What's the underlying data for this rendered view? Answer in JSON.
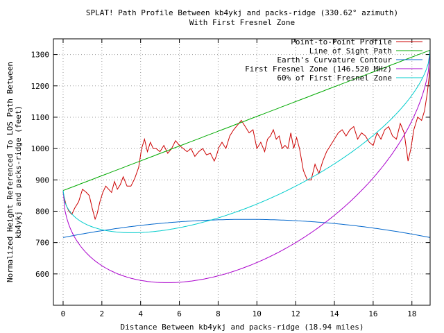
{
  "chart_data": {
    "type": "line",
    "title": "SPLAT! Path Profile Between kb4ykj and packs-ridge (330.62° azimuth)",
    "subtitle": "With First Fresnel Zone",
    "xlabel": "Distance Between kb4ykj and packs-ridge (18.94 miles)",
    "ylabel_line1": "Normalized Height Referenced To LOS Path Between",
    "ylabel_line2": "kb4ykj and packs-ridge (feet)",
    "xlim": [
      -0.5,
      18.94
    ],
    "ylim": [
      500,
      1350
    ],
    "x_ticks": [
      0,
      2,
      4,
      6,
      8,
      10,
      12,
      14,
      16,
      18
    ],
    "y_ticks": [
      600,
      700,
      800,
      900,
      1000,
      1100,
      1200,
      1300
    ],
    "grid": true,
    "legend_position": "top-right",
    "series": [
      {
        "name": "Point-to-Point Profile",
        "color": "#cc0000",
        "x": [
          0,
          0.15,
          0.3,
          0.45,
          0.6,
          0.8,
          1.0,
          1.2,
          1.35,
          1.5,
          1.65,
          1.75,
          1.9,
          2.05,
          2.2,
          2.35,
          2.5,
          2.65,
          2.8,
          2.95,
          3.1,
          3.3,
          3.5,
          3.7,
          3.9,
          4.05,
          4.2,
          4.35,
          4.5,
          4.65,
          4.8,
          5.0,
          5.2,
          5.4,
          5.6,
          5.8,
          6.0,
          6.2,
          6.4,
          6.6,
          6.8,
          7.0,
          7.2,
          7.4,
          7.6,
          7.8,
          7.9,
          8.05,
          8.2,
          8.4,
          8.6,
          8.8,
          9.0,
          9.2,
          9.4,
          9.6,
          9.8,
          10.0,
          10.2,
          10.4,
          10.55,
          10.7,
          10.85,
          11.0,
          11.15,
          11.3,
          11.45,
          11.6,
          11.75,
          11.9,
          12.05,
          12.2,
          12.4,
          12.6,
          12.8,
          13.0,
          13.2,
          13.4,
          13.6,
          13.8,
          14.0,
          14.2,
          14.4,
          14.6,
          14.8,
          15.0,
          15.2,
          15.4,
          15.6,
          15.8,
          16.0,
          16.2,
          16.4,
          16.6,
          16.8,
          17.0,
          17.2,
          17.4,
          17.6,
          17.8,
          17.95,
          18.1,
          18.3,
          18.5,
          18.65,
          18.8,
          18.94
        ],
        "y": [
          860,
          820,
          800,
          790,
          810,
          830,
          870,
          860,
          850,
          810,
          775,
          790,
          830,
          860,
          880,
          870,
          860,
          895,
          870,
          885,
          910,
          880,
          880,
          905,
          940,
          1000,
          1030,
          990,
          1020,
          1000,
          1000,
          990,
          1010,
          985,
          1000,
          1025,
          1010,
          1000,
          990,
          1000,
          975,
          990,
          1000,
          980,
          985,
          960,
          975,
          1005,
          1020,
          1000,
          1040,
          1060,
          1075,
          1090,
          1070,
          1050,
          1060,
          1000,
          1020,
          990,
          1030,
          1040,
          1060,
          1030,
          1040,
          1000,
          1010,
          1000,
          1050,
          1000,
          1035,
          1000,
          930,
          900,
          900,
          950,
          920,
          960,
          990,
          1010,
          1030,
          1050,
          1060,
          1040,
          1060,
          1070,
          1030,
          1050,
          1040,
          1020,
          1010,
          1050,
          1030,
          1060,
          1070,
          1040,
          1030,
          1080,
          1050,
          960,
          1000,
          1060,
          1100,
          1090,
          1120,
          1180,
          1260
        ]
      },
      {
        "name": "Line of Sight Path",
        "color": "#00aa00",
        "curve": "linear",
        "y_start": 866,
        "y_end": 1314
      },
      {
        "name": "Earth's Curvature Contour",
        "color": "#0066cc",
        "curve": "arc",
        "y_start": 716,
        "y_mid": 774,
        "y_end": 716
      },
      {
        "name": "First Fresnel Zone (146.520 MHz)",
        "color": "#aa00cc",
        "curve": "fresnel_lower",
        "radius_max": 467
      },
      {
        "name": "60% of First Fresnel Zone",
        "color": "#00cccc",
        "curve": "fresnel_lower",
        "radius_max": 280
      }
    ]
  }
}
